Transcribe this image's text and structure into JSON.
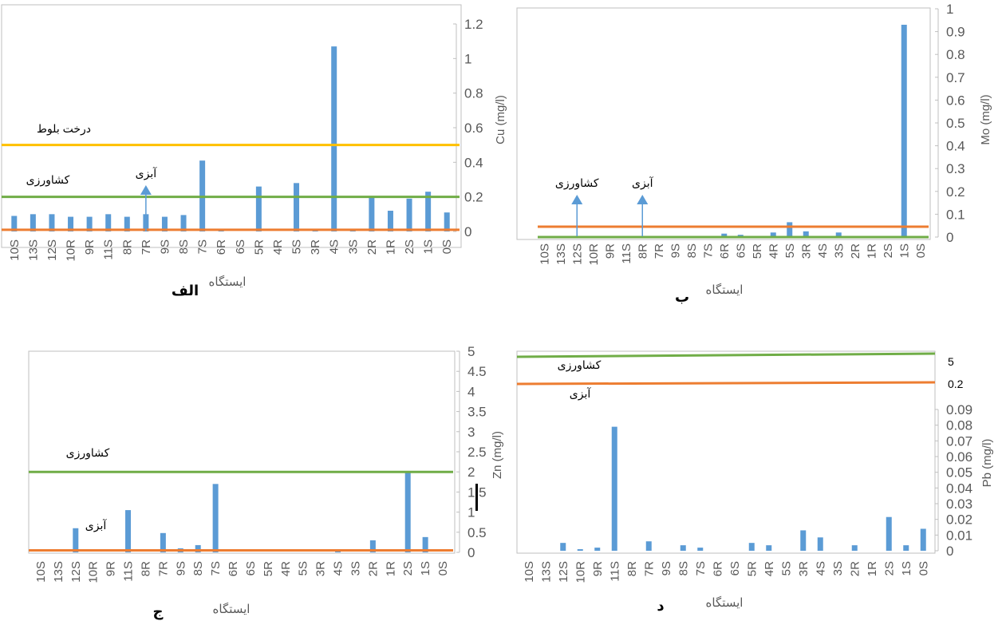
{
  "colors": {
    "bar": "#5b9bd5",
    "green": "#70ad47",
    "orange": "#ed7d31",
    "yellow": "#ffc000",
    "axis": "#bfbfbf",
    "tick": "#595959"
  },
  "chart_data": [
    {
      "id": "alef",
      "type": "bar",
      "caption": "الف",
      "xlabel": "ایستگاه",
      "ylabel": "Cu (mg/l)",
      "ylim": [
        0,
        1.2
      ],
      "yticks": [
        "0",
        "0.2",
        "0.4",
        "0.6",
        "0.8",
        "1",
        "1.2"
      ],
      "categories": [
        "10S",
        "13S",
        "12S",
        "10R",
        "9R",
        "11S",
        "8R",
        "7R",
        "9S",
        "8S",
        "7S",
        "6R",
        "6S",
        "5R",
        "4R",
        "5S",
        "3R",
        "4S",
        "3S",
        "2R",
        "1R",
        "2S",
        "1S",
        "0S"
      ],
      "values": [
        0.09,
        0.1,
        0.1,
        0.085,
        0.085,
        0.1,
        0.085,
        0.1,
        0.085,
        0.095,
        0.41,
        0.005,
        0,
        0.26,
        0,
        0.28,
        0.015,
        1.07,
        0.005,
        0.2,
        0.12,
        0.19,
        0.23,
        0.11
      ],
      "reference_lines": [
        {
          "label": "درخت بلوط",
          "value": 0.5,
          "color": "yellow"
        },
        {
          "label": "کشاورزی",
          "value": 0.2,
          "color": "green"
        },
        {
          "label": "",
          "value": 0.01,
          "color": "orange"
        }
      ],
      "arrows": [
        {
          "label": "آبزی",
          "category": "7R"
        }
      ]
    },
    {
      "id": "be",
      "type": "bar",
      "caption": "ب",
      "xlabel": "ایستگاه",
      "ylabel": "Mo (mg/l)",
      "ylim": [
        0,
        1
      ],
      "yticks": [
        "0",
        "0.1",
        "0.2",
        "0.3",
        "0.4",
        "0.5",
        "0.6",
        "0.7",
        "0.8",
        "0.9",
        "1"
      ],
      "categories": [
        "10S",
        "13S",
        "12S",
        "10R",
        "9R",
        "11S",
        "8R",
        "7R",
        "9S",
        "8S",
        "7S",
        "6R",
        "6S",
        "5R",
        "4R",
        "5S",
        "3R",
        "4S",
        "3S",
        "2R",
        "1R",
        "2S",
        "1S",
        "0S"
      ],
      "values": [
        0,
        0,
        0,
        0,
        0,
        0,
        0,
        0,
        0,
        0,
        0,
        0.015,
        0.01,
        0,
        0.02,
        0.065,
        0.025,
        0,
        0.02,
        0,
        0,
        0,
        0.93,
        0
      ],
      "reference_lines": [
        {
          "label": "",
          "value": 0.04,
          "color": "orange"
        },
        {
          "label": "",
          "value": 0.0,
          "color": "green"
        }
      ],
      "arrows": [
        {
          "label": "کشاورزی",
          "category": "12S"
        },
        {
          "label": "آبزی",
          "category": "8R"
        }
      ]
    },
    {
      "id": "jim",
      "type": "bar",
      "caption": "ج",
      "xlabel": "ایستگاه",
      "ylabel": "Zn (mg/l)",
      "ylim": [
        0,
        5
      ],
      "yticks": [
        "0",
        "0.5",
        "1",
        "1.5",
        "2",
        "2.5",
        "3",
        "3.5",
        "4",
        "4.5",
        "5"
      ],
      "categories": [
        "10S",
        "13S",
        "12S",
        "10R",
        "9R",
        "11S",
        "8R",
        "7R",
        "9S",
        "8S",
        "7S",
        "6R",
        "6S",
        "5R",
        "4R",
        "5S",
        "3R",
        "4S",
        "3S",
        "2R",
        "1R",
        "2S",
        "1S",
        "0S"
      ],
      "values": [
        0,
        0,
        0.6,
        0,
        0,
        1.05,
        0,
        0.48,
        0.1,
        0.18,
        1.7,
        0,
        0,
        0,
        0,
        0,
        0,
        0.05,
        0,
        0.3,
        0,
        2,
        0.38,
        0
      ],
      "reference_lines": [
        {
          "label": "کشاورزی",
          "value": 2,
          "color": "green"
        },
        {
          "label": "آبزی",
          "value": 0.05,
          "color": "orange"
        }
      ]
    },
    {
      "id": "dal",
      "type": "bar",
      "caption": "د",
      "xlabel": "ایستگاه",
      "ylabel": "Pb (mg/l)",
      "ylim": [
        0,
        0.09
      ],
      "yticks": [
        "0",
        "0.01",
        "0.02",
        "0.03",
        "0.04",
        "0.05",
        "0.06",
        "0.07",
        "0.08",
        "0.09"
      ],
      "extra_ticks": [
        "5",
        "0.2"
      ],
      "categories": [
        "10S",
        "13S",
        "12S",
        "10R",
        "9R",
        "11S",
        "8R",
        "7R",
        "9S",
        "8S",
        "7S",
        "6R",
        "6S",
        "5R",
        "4R",
        "5S",
        "3R",
        "4S",
        "3S",
        "2R",
        "1R",
        "2S",
        "1S",
        "0S"
      ],
      "values": [
        0,
        0,
        0.005,
        0.001,
        0.002,
        0.079,
        0,
        0.006,
        0,
        0.0035,
        0.002,
        0,
        0,
        0.005,
        0.0035,
        0,
        0.013,
        0.0085,
        0,
        0.0035,
        0,
        0.0215,
        0.0035,
        0.014
      ],
      "reference_lines": [
        {
          "label": "کشاورزی",
          "value": 5,
          "color": "green"
        },
        {
          "label": "آبزی",
          "value": 0.2,
          "color": "orange"
        }
      ]
    }
  ]
}
